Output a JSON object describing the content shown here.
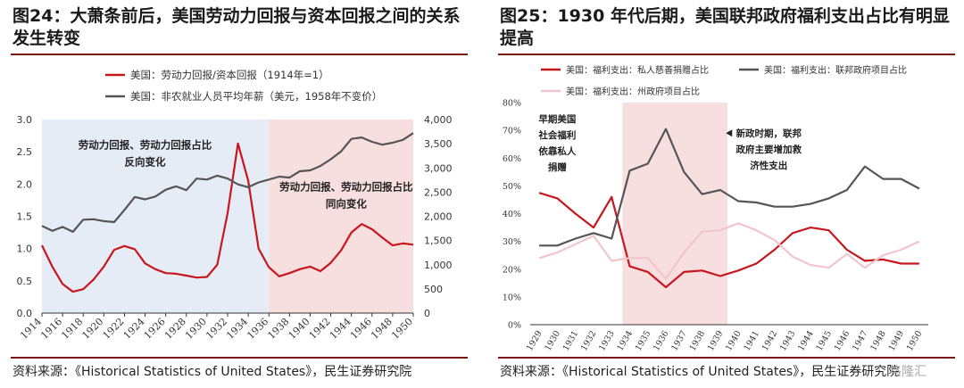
{
  "panels": [
    {
      "title": "图24：大萧条前后，美国劳动力回报与资本回报之间的关系发生转变",
      "source": "资料来源：《Historical Statistics of United States》，民生证券研究院"
    },
    {
      "title": "图25：1930 年代后期，美国联邦政府福利支出占比有明显提高",
      "source": "资料来源：《Historical Statistics of United States》，民生证券研究院",
      "watermark": "格隆汇"
    }
  ],
  "chart_data": [
    {
      "type": "line",
      "title": "",
      "x": [
        1914,
        1915,
        1916,
        1917,
        1918,
        1919,
        1920,
        1921,
        1922,
        1923,
        1924,
        1925,
        1926,
        1927,
        1928,
        1929,
        1930,
        1931,
        1932,
        1933,
        1934,
        1935,
        1936,
        1937,
        1938,
        1939,
        1940,
        1941,
        1942,
        1943,
        1944,
        1945,
        1946,
        1947,
        1948,
        1949,
        1950
      ],
      "xticks": [
        "1914",
        "1916",
        "1918",
        "1920",
        "1922",
        "1924",
        "1926",
        "1928",
        "1930",
        "1932",
        "1934",
        "1936",
        "1938",
        "1940",
        "1942",
        "1944",
        "1946",
        "1948",
        "1950"
      ],
      "ylim": [
        0,
        3.0
      ],
      "yticks": [
        "0.0",
        "0.5",
        "1.0",
        "1.5",
        "2.0",
        "2.5",
        "3.0"
      ],
      "y2lim": [
        0,
        4000
      ],
      "y2ticks": [
        "0",
        "500",
        "1,000",
        "1,500",
        "2,000",
        "2,500",
        "3,000",
        "3,500",
        "4,000"
      ],
      "series": [
        {
          "name": "美国：劳动力回报/资本回报（1914年=1）",
          "axis": "left",
          "color": "#c8161d",
          "values": [
            1.05,
            0.72,
            0.45,
            0.33,
            0.37,
            0.52,
            0.72,
            0.98,
            1.04,
            0.99,
            0.77,
            0.68,
            0.62,
            0.61,
            0.58,
            0.55,
            0.56,
            0.75,
            1.55,
            2.63,
            2.05,
            1.0,
            0.71,
            0.57,
            0.62,
            0.68,
            0.72,
            0.65,
            0.78,
            0.97,
            1.25,
            1.38,
            1.3,
            1.17,
            1.05,
            1.08,
            1.06
          ]
        },
        {
          "name": "美国：非农就业人员平均年薪（美元，1958年不变价）",
          "axis": "right",
          "color": "#555555",
          "values": [
            1800,
            1700,
            1780,
            1680,
            1930,
            1940,
            1900,
            1880,
            2130,
            2400,
            2350,
            2410,
            2550,
            2620,
            2540,
            2780,
            2760,
            2840,
            2780,
            2660,
            2600,
            2700,
            2760,
            2820,
            2800,
            2930,
            2950,
            3040,
            3180,
            3340,
            3600,
            3630,
            3540,
            3480,
            3520,
            3580,
            3720
          ]
        }
      ],
      "bands": [
        {
          "from": 1914,
          "to": 1936,
          "color": "#e6ecf6"
        },
        {
          "from": 1936,
          "to": 1950,
          "color": "#f7dfdf"
        }
      ],
      "annotations": [
        {
          "text": [
            "劳动力回报、劳动力回报占比",
            "反向变化"
          ],
          "x": 1924,
          "y": 2.55
        },
        {
          "text": [
            "劳动力回报、劳动力回报占比",
            "同向变化"
          ],
          "x": 1943.5,
          "y": 1.9
        }
      ],
      "legend_position": "top"
    },
    {
      "type": "line",
      "title": "",
      "x": [
        1929,
        1930,
        1931,
        1932,
        1933,
        1934,
        1935,
        1936,
        1937,
        1938,
        1939,
        1940,
        1941,
        1942,
        1943,
        1944,
        1945,
        1946,
        1947,
        1948,
        1949,
        1950
      ],
      "xticks": [
        "1929",
        "1930",
        "1931",
        "1932",
        "1933",
        "1934",
        "1935",
        "1936",
        "1937",
        "1938",
        "1939",
        "1940",
        "1941",
        "1942",
        "1943",
        "1944",
        "1945",
        "1946",
        "1947",
        "1948",
        "1949",
        "1950"
      ],
      "ylim": [
        0,
        80
      ],
      "yticks": [
        "0%",
        "10%",
        "20%",
        "30%",
        "40%",
        "50%",
        "60%",
        "70%",
        "80%"
      ],
      "series": [
        {
          "name": "美国：福利支出：私人慈善捐赠占比",
          "color": "#c8161d",
          "values": [
            47.5,
            45.5,
            40,
            35,
            46,
            21,
            19,
            13.5,
            19,
            19.5,
            17.5,
            19.5,
            22,
            27,
            33,
            35,
            34,
            27,
            23,
            23.5,
            22,
            22
          ]
        },
        {
          "name": "美国：福利支出：联邦政府项目占比",
          "color": "#555555",
          "values": [
            28.5,
            28.5,
            31,
            33,
            31,
            55.5,
            58,
            70.5,
            55,
            47,
            48.5,
            44.5,
            44,
            42.5,
            42.5,
            43.5,
            45.5,
            48.5,
            57,
            52.5,
            52.5,
            49
          ]
        },
        {
          "name": "美国：福利支出：州政府项目占比",
          "color": "#f2c4cb",
          "values": [
            24,
            26,
            29,
            32,
            23,
            24,
            24,
            16.5,
            26,
            33.5,
            34,
            36.5,
            34,
            30.5,
            24.5,
            21.5,
            20.5,
            25.5,
            20.5,
            25,
            27,
            30
          ]
        }
      ],
      "bands": [
        {
          "from": 1934,
          "to": 1939,
          "color": "#f7dfdf"
        }
      ],
      "annotations": [
        {
          "text": [
            "早期美国",
            "社会福利",
            "依靠私人",
            "捐赠"
          ],
          "x": 1930,
          "y": 73
        },
        {
          "text": [
            "新政时期，联邦",
            "政府主要增加救",
            "济性支出"
          ],
          "x": 1940.5,
          "y": 69
        }
      ],
      "legend_position": "top"
    }
  ]
}
